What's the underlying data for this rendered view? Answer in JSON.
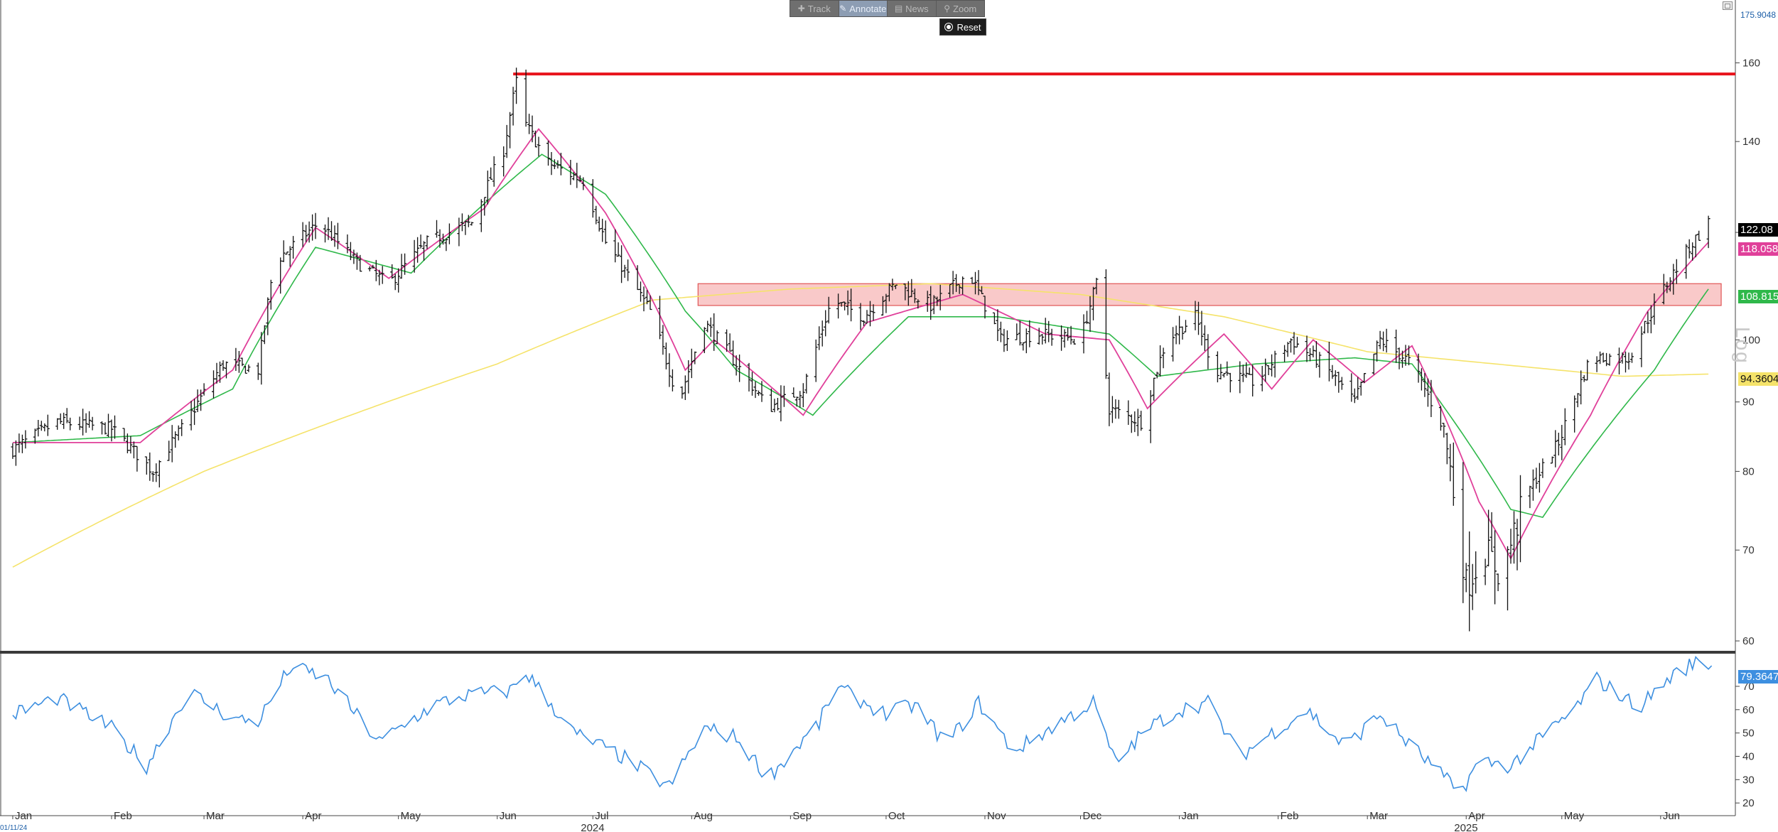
{
  "toolbar": {
    "track_label": "Track",
    "annotate_label": "Annotate",
    "news_label": "News",
    "zoom_label": "Zoom",
    "reset_label": "Reset",
    "icons": [
      "plus-icon",
      "pencil-icon",
      "news-icon",
      "magnifier-icon",
      "radio-dot-icon"
    ]
  },
  "scale_label": "Log",
  "bottom_date": "01/11/24",
  "colors": {
    "price_bars": "#111111",
    "ma_short": "#e0409a",
    "ma_mid": "#2fb84a",
    "ma_long": "#f5e36a",
    "resistance_line": "#e8121b",
    "zone_fill": "#f9c9c9",
    "zone_border": "#e05555",
    "rsi_line": "#3d8fe0",
    "divider": "#3a3a3a"
  },
  "price_tags": {
    "top": "175.9048",
    "last_price": "122.08",
    "ma_short": "118.058",
    "ma_mid": "108.815",
    "ma_long": "94.3604",
    "rsi": "79.3647"
  },
  "chart_data": [
    {
      "type": "ohlc",
      "scale": "log",
      "ylim": [
        59,
        178
      ],
      "y_ticks": [
        60,
        70,
        80,
        90,
        100,
        120,
        140,
        160
      ],
      "x_tick_labels": [
        "Jan",
        "Feb",
        "Mar",
        "Apr",
        "May",
        "Jun",
        "Jul",
        "Aug",
        "Sep",
        "Oct",
        "Nov",
        "Dec",
        "Jan",
        "Feb",
        "Mar",
        "Apr",
        "May",
        "Jun"
      ],
      "year_labels": [
        "2024",
        "2025"
      ],
      "close_anchors": [
        [
          "2024-01-01",
          83
        ],
        [
          "2024-01-15",
          87
        ],
        [
          "2024-02-01",
          86
        ],
        [
          "2024-02-14",
          80
        ],
        [
          "2024-02-23",
          86
        ],
        [
          "2024-03-07",
          96
        ],
        [
          "2024-03-18",
          95
        ],
        [
          "2024-03-23",
          114
        ],
        [
          "2024-04-06",
          122
        ],
        [
          "2024-04-18",
          114
        ],
        [
          "2024-04-28",
          110
        ],
        [
          "2024-05-10",
          118
        ],
        [
          "2024-05-24",
          122
        ],
        [
          "2024-06-03",
          138
        ],
        [
          "2024-06-07",
          155
        ],
        [
          "2024-06-10",
          144
        ],
        [
          "2024-06-17",
          135
        ],
        [
          "2024-06-28",
          131
        ],
        [
          "2024-07-05",
          118
        ],
        [
          "2024-07-19",
          105
        ],
        [
          "2024-07-28",
          90
        ],
        [
          "2024-08-05",
          103
        ],
        [
          "2024-08-15",
          96
        ],
        [
          "2024-08-25",
          89
        ],
        [
          "2024-09-05",
          92
        ],
        [
          "2024-09-14",
          107
        ],
        [
          "2024-09-24",
          104
        ],
        [
          "2024-10-04",
          110
        ],
        [
          "2024-10-15",
          106
        ],
        [
          "2024-10-27",
          112
        ],
        [
          "2024-11-06",
          100
        ],
        [
          "2024-11-18",
          101
        ],
        [
          "2024-12-01",
          100
        ],
        [
          "2024-12-06",
          110
        ],
        [
          "2024-12-10",
          89
        ],
        [
          "2024-12-20",
          87
        ],
        [
          "2024-12-28",
          100
        ],
        [
          "2025-01-06",
          104
        ],
        [
          "2025-01-12",
          95
        ],
        [
          "2025-01-25",
          93
        ],
        [
          "2025-02-05",
          100
        ],
        [
          "2025-02-15",
          96
        ],
        [
          "2025-02-25",
          90
        ],
        [
          "2025-03-05",
          100
        ],
        [
          "2025-03-15",
          96
        ],
        [
          "2025-03-25",
          86
        ],
        [
          "2025-04-01",
          66
        ],
        [
          "2025-04-07",
          70
        ],
        [
          "2025-04-12",
          67
        ],
        [
          "2025-04-20",
          77
        ],
        [
          "2025-04-30",
          84
        ],
        [
          "2025-05-10",
          97
        ],
        [
          "2025-05-22",
          97
        ],
        [
          "2025-06-01",
          108
        ],
        [
          "2025-06-10",
          117
        ],
        [
          "2025-06-16",
          122
        ]
      ],
      "ma_short_anchors": [
        [
          "2024-01-01",
          84
        ],
        [
          "2024-02-10",
          84
        ],
        [
          "2024-03-10",
          95
        ],
        [
          "2024-04-05",
          121
        ],
        [
          "2024-04-28",
          111
        ],
        [
          "2024-05-28",
          125
        ],
        [
          "2024-06-14",
          143
        ],
        [
          "2024-07-05",
          124
        ],
        [
          "2024-07-30",
          95
        ],
        [
          "2024-08-08",
          100
        ],
        [
          "2024-09-05",
          88
        ],
        [
          "2024-09-25",
          103
        ],
        [
          "2024-10-25",
          108
        ],
        [
          "2024-11-20",
          101
        ],
        [
          "2024-12-10",
          100
        ],
        [
          "2024-12-22",
          89
        ],
        [
          "2025-01-15",
          101
        ],
        [
          "2025-01-30",
          92
        ],
        [
          "2025-02-12",
          100
        ],
        [
          "2025-02-28",
          93
        ],
        [
          "2025-03-15",
          99
        ],
        [
          "2025-04-05",
          76
        ],
        [
          "2025-04-15",
          69
        ],
        [
          "2025-05-10",
          88
        ],
        [
          "2025-05-28",
          105
        ],
        [
          "2025-06-16",
          118
        ]
      ],
      "ma_mid_anchors": [
        [
          "2024-01-01",
          84
        ],
        [
          "2024-02-10",
          85
        ],
        [
          "2024-03-10",
          92
        ],
        [
          "2024-04-05",
          117
        ],
        [
          "2024-05-05",
          112
        ],
        [
          "2024-06-15",
          137
        ],
        [
          "2024-07-05",
          128
        ],
        [
          "2024-07-30",
          105
        ],
        [
          "2024-08-15",
          95
        ],
        [
          "2024-09-08",
          88
        ],
        [
          "2024-10-08",
          104
        ],
        [
          "2024-11-05",
          104
        ],
        [
          "2024-12-10",
          101
        ],
        [
          "2024-12-25",
          94
        ],
        [
          "2025-01-25",
          96
        ],
        [
          "2025-02-25",
          97
        ],
        [
          "2025-03-15",
          96
        ],
        [
          "2025-04-15",
          75
        ],
        [
          "2025-04-25",
          74
        ],
        [
          "2025-05-30",
          95
        ],
        [
          "2025-06-16",
          109
        ]
      ],
      "ma_long_anchors": [
        [
          "2024-01-01",
          68
        ],
        [
          "2024-03-01",
          80
        ],
        [
          "2024-06-01",
          96
        ],
        [
          "2024-07-20",
          107
        ],
        [
          "2024-09-01",
          109
        ],
        [
          "2024-10-15",
          110
        ],
        [
          "2024-12-01",
          108
        ],
        [
          "2025-01-15",
          104
        ],
        [
          "2025-03-01",
          98
        ],
        [
          "2025-05-20",
          94
        ],
        [
          "2025-06-16",
          94.3604
        ]
      ],
      "resistance_line": {
        "value": 157,
        "from": "2024-06-06",
        "to": "2025-06-20"
      },
      "resistance_zone": {
        "low": 106,
        "high": 110,
        "from": "2024-08-03",
        "to": "2025-06-20"
      },
      "last_price": 122.08
    },
    {
      "type": "line",
      "name": "",
      "ylim": [
        17,
        84
      ],
      "y_ticks": [
        20,
        30,
        40,
        50,
        60,
        70
      ],
      "values_anchors": [
        [
          "2024-01-01",
          58
        ],
        [
          "2024-01-15",
          65
        ],
        [
          "2024-02-01",
          52
        ],
        [
          "2024-02-12",
          36
        ],
        [
          "2024-02-25",
          68
        ],
        [
          "2024-03-10",
          56
        ],
        [
          "2024-03-18",
          55
        ],
        [
          "2024-03-28",
          78
        ],
        [
          "2024-04-08",
          74
        ],
        [
          "2024-04-25",
          46
        ],
        [
          "2024-05-12",
          62
        ],
        [
          "2024-05-22",
          66
        ],
        [
          "2024-06-05",
          68
        ],
        [
          "2024-06-10",
          76
        ],
        [
          "2024-06-25",
          50
        ],
        [
          "2024-07-10",
          40
        ],
        [
          "2024-07-25",
          27
        ],
        [
          "2024-08-05",
          52
        ],
        [
          "2024-08-15",
          48
        ],
        [
          "2024-08-25",
          31
        ],
        [
          "2024-09-10",
          54
        ],
        [
          "2024-09-15",
          70
        ],
        [
          "2024-10-01",
          58
        ],
        [
          "2024-10-10",
          62
        ],
        [
          "2024-10-20",
          45
        ],
        [
          "2024-10-30",
          63
        ],
        [
          "2024-11-10",
          42
        ],
        [
          "2024-11-25",
          55
        ],
        [
          "2024-12-05",
          63
        ],
        [
          "2024-12-12",
          37
        ],
        [
          "2024-12-22",
          52
        ],
        [
          "2025-01-01",
          60
        ],
        [
          "2025-01-10",
          63
        ],
        [
          "2025-01-20",
          40
        ],
        [
          "2025-02-01",
          52
        ],
        [
          "2025-02-10",
          60
        ],
        [
          "2025-02-22",
          44
        ],
        [
          "2025-03-05",
          58
        ],
        [
          "2025-03-12",
          48
        ],
        [
          "2025-03-22",
          35
        ],
        [
          "2025-03-30",
          24
        ],
        [
          "2025-04-05",
          38
        ],
        [
          "2025-04-15",
          36
        ],
        [
          "2025-04-28",
          52
        ],
        [
          "2025-05-05",
          60
        ],
        [
          "2025-05-12",
          73
        ],
        [
          "2025-05-25",
          61
        ],
        [
          "2025-06-05",
          75
        ],
        [
          "2025-06-13",
          81
        ],
        [
          "2025-06-17",
          79.3647
        ]
      ],
      "last_value": 79.3647
    }
  ]
}
